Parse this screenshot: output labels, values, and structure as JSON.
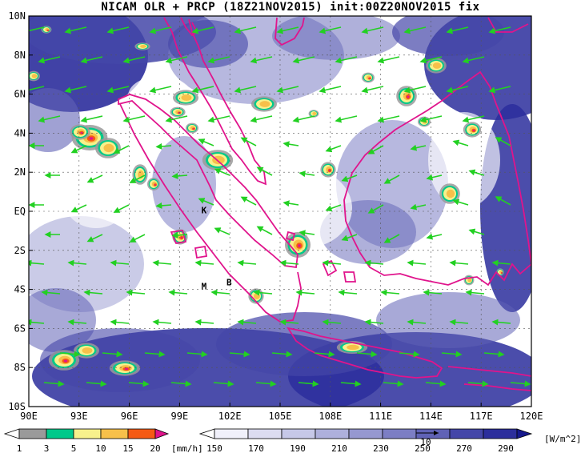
{
  "title": "NICAM OLR + PRCP (18Z21NOV2015) init:00Z20NOV2015 fix",
  "axes": {
    "lon_ticks": [
      "90E",
      "93E",
      "96E",
      "99E",
      "102E",
      "105E",
      "108E",
      "111E",
      "114E",
      "117E",
      "120E"
    ],
    "lat_ticks": [
      "10N",
      "8N",
      "6N",
      "4N",
      "2N",
      "EQ",
      "2S",
      "4S",
      "6S",
      "8S",
      "10S"
    ]
  },
  "place_labels": [
    {
      "text": "K",
      "lon": 100.3,
      "lat": -0.1
    },
    {
      "text": "M",
      "lon": 100.3,
      "lat": -4.0
    },
    {
      "text": "B",
      "lon": 101.8,
      "lat": -3.8
    }
  ],
  "colors": {
    "coast": "#e0148c",
    "wind": "#22d022",
    "grid": "#555555"
  },
  "legends": {
    "precip": {
      "unit": "[mm/h]",
      "labels": [
        "1",
        "3",
        "5",
        "10",
        "15",
        "20"
      ],
      "colors": [
        "#9a9a9a",
        "#00c98a",
        "#f7f18c",
        "#f7c04a",
        "#f55a14",
        "#e0148c"
      ]
    },
    "olr": {
      "unit": "[W/m^2]",
      "labels": [
        "150",
        "170",
        "190",
        "210",
        "230",
        "250",
        "270",
        "290"
      ],
      "colors": [
        "#f0f0fa",
        "#dcdcf0",
        "#c6c8e8",
        "#aeb0dc",
        "#9698d0",
        "#7c7ec4",
        "#6062b6",
        "#4446a8",
        "#2c2e9c",
        "#16188c"
      ]
    },
    "vector_ref_label": "10"
  }
}
